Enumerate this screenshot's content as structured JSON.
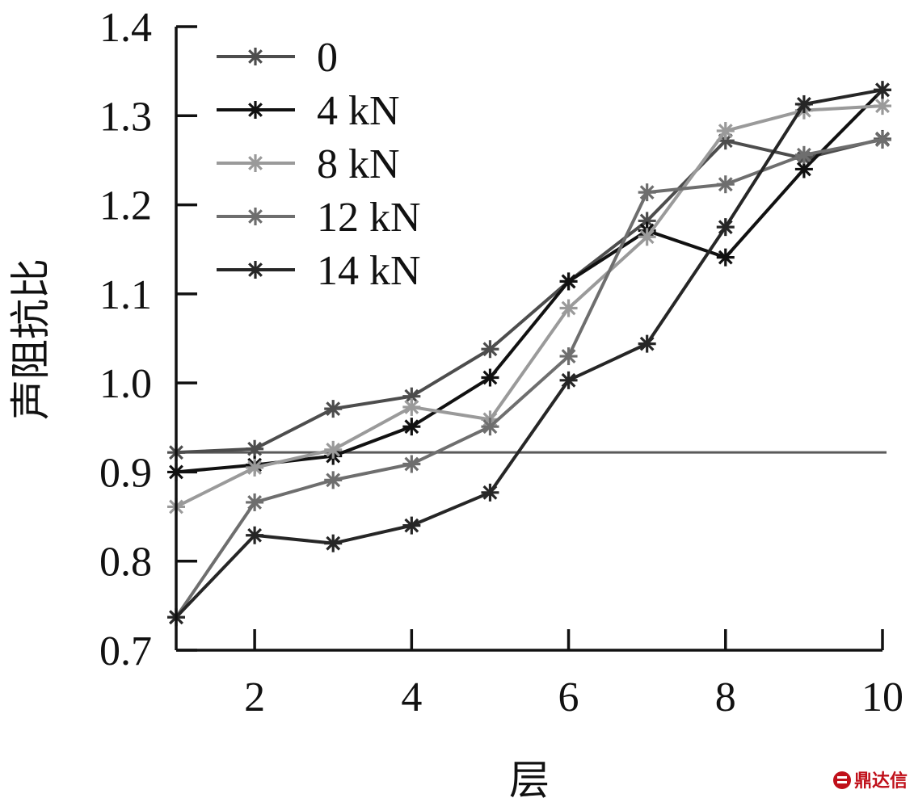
{
  "chart_data": {
    "type": "line",
    "title": "",
    "xlabel": "层",
    "ylabel": "声阻抗比",
    "xlim": [
      1,
      10
    ],
    "ylim": [
      0.7,
      1.4
    ],
    "x_ticks": [
      2,
      4,
      6,
      8,
      10
    ],
    "x_tick_labels": [
      "2",
      "4",
      "6",
      "8",
      "10"
    ],
    "y_ticks": [
      0.7,
      0.8,
      0.9,
      1.0,
      1.1,
      1.2,
      1.3,
      1.4
    ],
    "y_tick_labels": [
      "0.7",
      "0.8",
      "0.9",
      "1.0",
      "1.1",
      "1.2",
      "1.3",
      "1.4"
    ],
    "grid": false,
    "legend_position": "top-left",
    "marker": "asterisk",
    "x": [
      1,
      2,
      3,
      4,
      5,
      6,
      7,
      8,
      9,
      10
    ],
    "series": [
      {
        "name": "0",
        "color": "#4d4d4d",
        "values": [
          0.922,
          0.926,
          0.971,
          0.985,
          1.038,
          1.114,
          1.182,
          1.272,
          1.252,
          1.274
        ]
      },
      {
        "name": "4 kN",
        "color": "#111111",
        "values": [
          0.9,
          0.908,
          0.918,
          0.951,
          1.006,
          1.114,
          1.171,
          1.141,
          1.24,
          1.329
        ]
      },
      {
        "name": "8 kN",
        "color": "#9a9a9a",
        "values": [
          0.861,
          0.905,
          0.925,
          0.973,
          0.959,
          1.084,
          1.164,
          1.283,
          1.306,
          1.311
        ]
      },
      {
        "name": "12 kN",
        "color": "#6e6e6e",
        "values": [
          0.737,
          0.866,
          0.891,
          0.909,
          0.951,
          1.03,
          1.214,
          1.223,
          1.256,
          1.273
        ]
      },
      {
        "name": "14 kN",
        "color": "#262626",
        "values": [
          0.737,
          0.829,
          0.82,
          0.84,
          0.877,
          1.003,
          1.044,
          1.175,
          1.313,
          1.329
        ]
      }
    ],
    "reference_line": {
      "y": 0.922,
      "color": "#5a5a5a"
    }
  },
  "watermark": {
    "text": "鼎达信",
    "color": "#c0101a"
  }
}
